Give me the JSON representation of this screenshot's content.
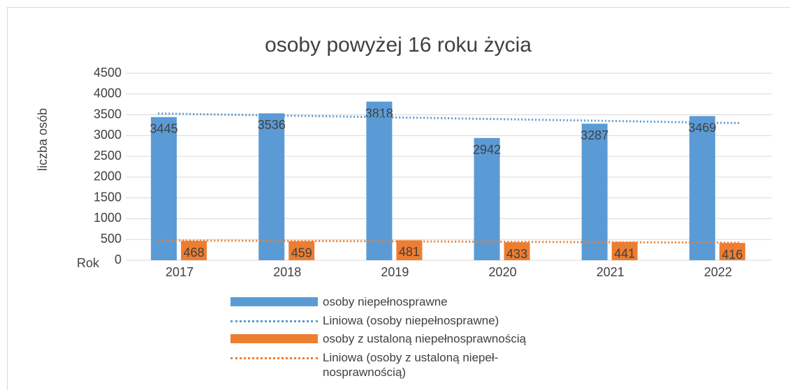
{
  "chart_data": {
    "type": "bar",
    "title": "osoby powyżej 16 roku życia",
    "x_label": "Rok",
    "y_label": "liczba osób",
    "categories": [
      "2017",
      "2018",
      "2019",
      "2020",
      "2021",
      "2022"
    ],
    "series": [
      {
        "name": "osoby niepełnosprawne",
        "color": "#5b9bd5",
        "values": [
          3445,
          3536,
          3818,
          2942,
          3287,
          3469
        ]
      },
      {
        "name": "osoby z ustaloną niepełnosprawnością",
        "color": "#ed7d31",
        "values": [
          468,
          459,
          481,
          433,
          441,
          416
        ]
      }
    ],
    "trendlines": [
      {
        "name": "Liniowa (osoby niepełnosprawne)",
        "series": 0,
        "color": "#5b9bd5"
      },
      {
        "name": "Liniowa (osoby z ustaloną niepeł-\nnosprawnością)",
        "series": 1,
        "color": "#ed7d31"
      }
    ],
    "ylim": [
      0,
      4500
    ],
    "yticks": [
      0,
      500,
      1000,
      1500,
      2000,
      2500,
      3000,
      3500,
      4000,
      4500
    ],
    "grid": true
  }
}
